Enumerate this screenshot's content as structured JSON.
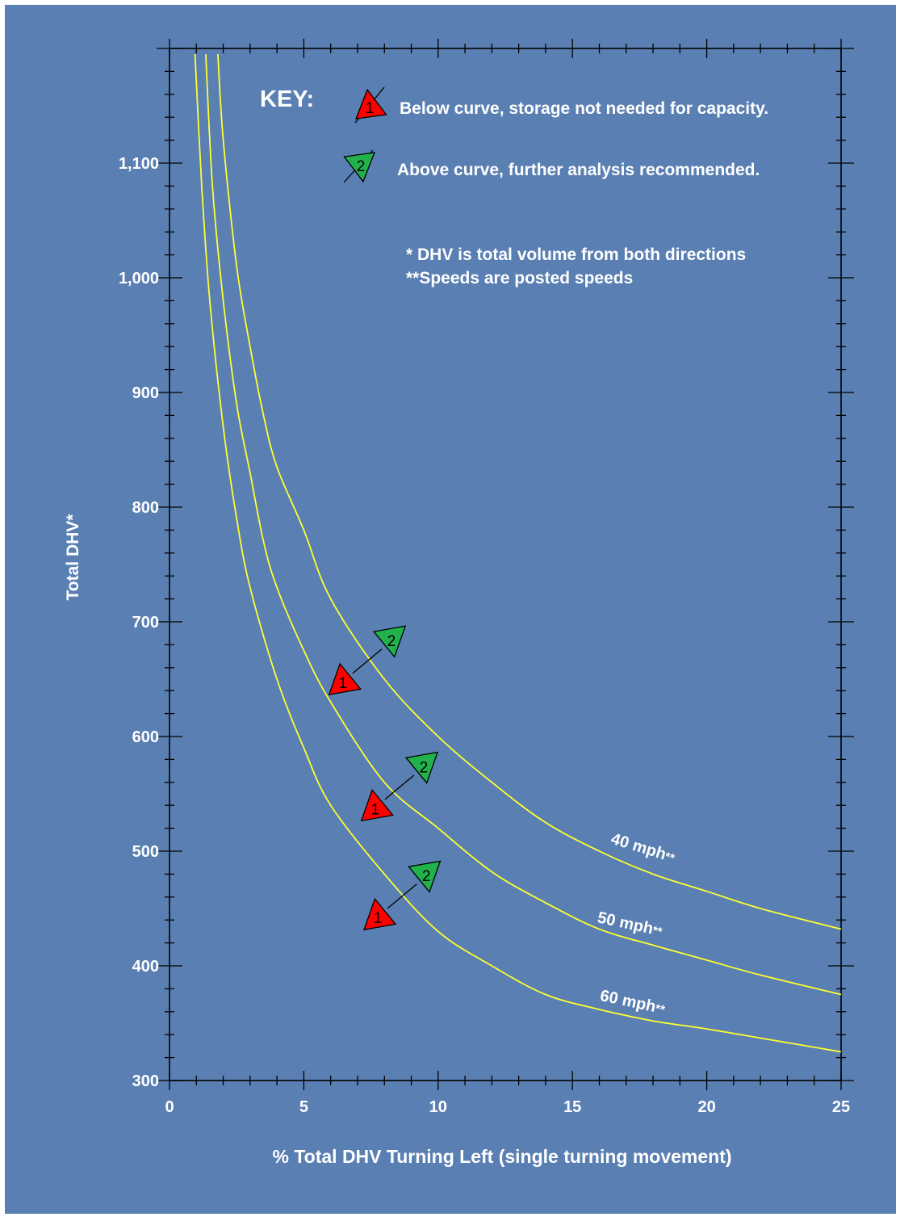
{
  "colors": {
    "background": "#5a7fb2",
    "axis": "#000000",
    "text": "#ffffff",
    "curve": "#ffff33",
    "marker_below": "#ff0000",
    "marker_above": "#22b24c"
  },
  "key": {
    "title": "KEY:",
    "below_label": "Below curve, storage not needed for capacity.",
    "above_label": "Above curve, further analysis recommended.",
    "below_marker_number": "1",
    "above_marker_number": "2"
  },
  "notes": [
    "* DHV is total volume from both directions",
    "**Speeds are posted speeds"
  ],
  "chart_data": {
    "type": "line",
    "xlabel": "% Total DHV Turning Left (single turning movement)",
    "ylabel": "Total DHV*",
    "xlim": [
      0,
      25
    ],
    "ylim": [
      300,
      1200
    ],
    "x_ticks": [
      "0",
      "5",
      "10",
      "15",
      "20",
      "25"
    ],
    "y_ticks": [
      "300",
      "400",
      "500",
      "600",
      "700",
      "800",
      "900",
      "1,000",
      "1,100"
    ],
    "series": [
      {
        "name": "40 mph**",
        "points": [
          [
            1.8,
            1195
          ],
          [
            2.0,
            1120
          ],
          [
            2.5,
            1010
          ],
          [
            3,
            940
          ],
          [
            3.5,
            880
          ],
          [
            4,
            835
          ],
          [
            5,
            780
          ],
          [
            6,
            720
          ],
          [
            8,
            650
          ],
          [
            10,
            600
          ],
          [
            12,
            560
          ],
          [
            14,
            525
          ],
          [
            16,
            500
          ],
          [
            18,
            480
          ],
          [
            20,
            465
          ],
          [
            22,
            450
          ],
          [
            25,
            432
          ]
        ]
      },
      {
        "name": "50 mph**",
        "points": [
          [
            1.35,
            1195
          ],
          [
            1.6,
            1080
          ],
          [
            2.0,
            980
          ],
          [
            2.5,
            890
          ],
          [
            3,
            830
          ],
          [
            3.5,
            770
          ],
          [
            4,
            730
          ],
          [
            5,
            675
          ],
          [
            6,
            630
          ],
          [
            8,
            560
          ],
          [
            10,
            520
          ],
          [
            12,
            482
          ],
          [
            14,
            455
          ],
          [
            16,
            432
          ],
          [
            18,
            418
          ],
          [
            20,
            405
          ],
          [
            22,
            392
          ],
          [
            25,
            375
          ]
        ]
      },
      {
        "name": "60 mph**",
        "points": [
          [
            0.95,
            1195
          ],
          [
            1.2,
            1080
          ],
          [
            1.5,
            980
          ],
          [
            2.0,
            870
          ],
          [
            2.5,
            790
          ],
          [
            3,
            730
          ],
          [
            4,
            650
          ],
          [
            5,
            590
          ],
          [
            6,
            540
          ],
          [
            8,
            480
          ],
          [
            10,
            430
          ],
          [
            12,
            400
          ],
          [
            14,
            375
          ],
          [
            16,
            362
          ],
          [
            18,
            352
          ],
          [
            20,
            345
          ],
          [
            22,
            337
          ],
          [
            25,
            325
          ]
        ]
      }
    ],
    "markers": [
      {
        "series": "40 mph**",
        "x": 7.3,
        "y": 665,
        "below_number": "1",
        "above_number": "2"
      },
      {
        "series": "50 mph**",
        "x": 8.5,
        "y": 555,
        "below_number": "1",
        "above_number": "2"
      },
      {
        "series": "60 mph**",
        "x": 8.6,
        "y": 460,
        "below_number": "1",
        "above_number": "2"
      }
    ]
  }
}
